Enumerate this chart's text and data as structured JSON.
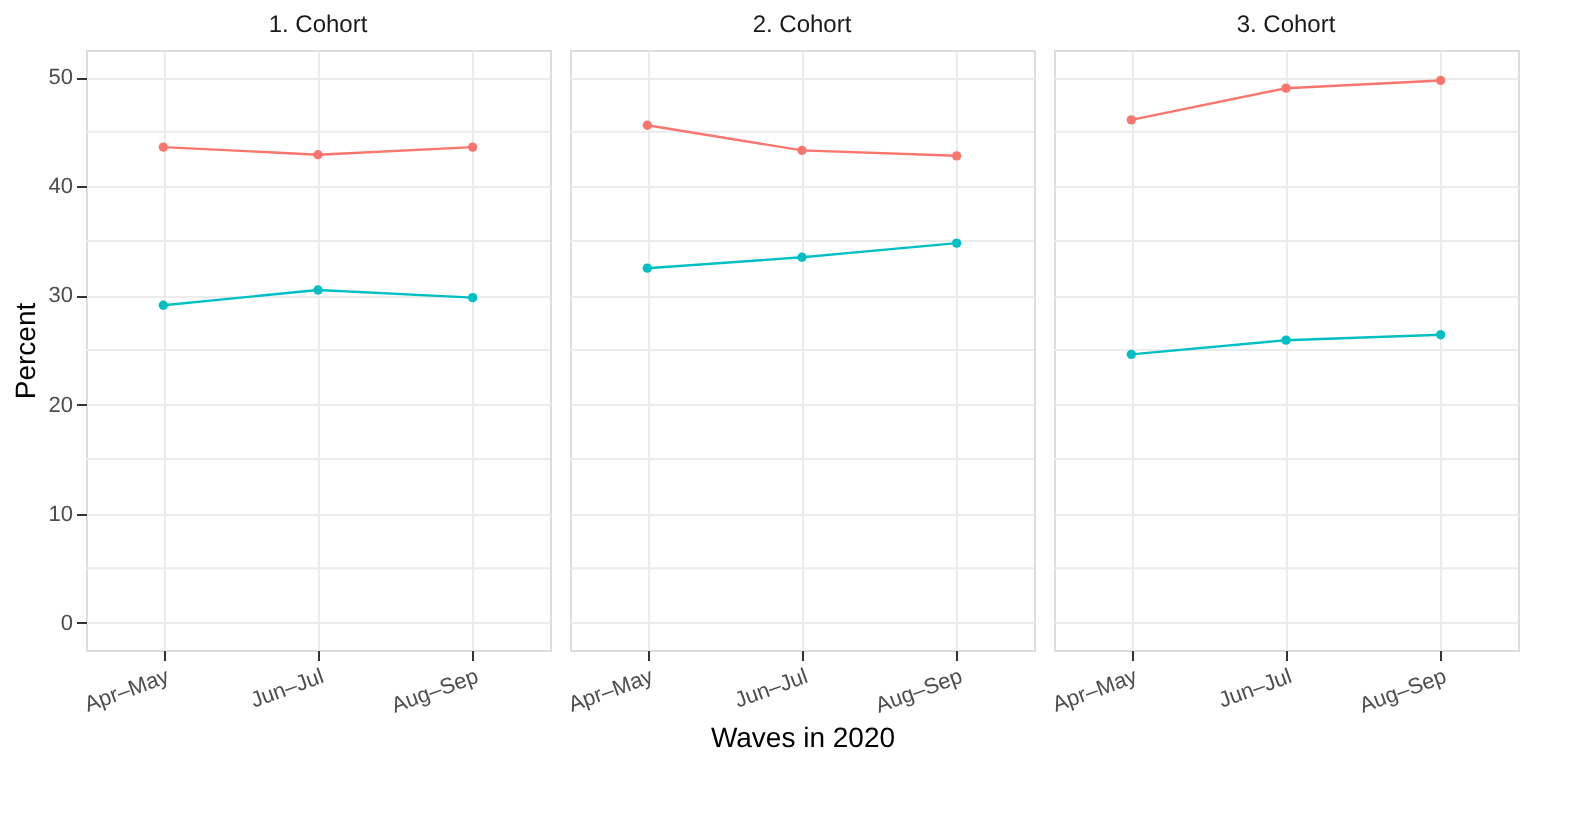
{
  "chart_data": [
    {
      "type": "line",
      "title": "1. Cohort",
      "ylabel": "Percent",
      "categories": [
        "Apr–May",
        "Jun–Jul",
        "Aug–Sep"
      ],
      "ylim": [
        -2.5,
        52.5
      ],
      "yticks": [
        0,
        {
          "value": 5,
          "label": null
        },
        10,
        {
          "value": 15,
          "label": null
        },
        20,
        {
          "value": 25,
          "label": null
        },
        30,
        {
          "value": 35,
          "label": null
        },
        40,
        {
          "value": 45,
          "label": null
        },
        50
      ],
      "grid": true,
      "marker": "circle",
      "legend": false,
      "series": [
        {
          "color": "#f8766d",
          "values": [
            43.6,
            42.9,
            43.6
          ]
        },
        {
          "color": "#00bfc4",
          "values": [
            29.1,
            30.5,
            29.8
          ]
        }
      ]
    },
    {
      "type": "line",
      "title": "2. Cohort",
      "xlabel": "Waves in 2020",
      "categories": [
        "Apr–May",
        "Jun–Jul",
        "Aug–Sep"
      ],
      "ylim": [
        -2.5,
        52.5
      ],
      "yticks": [
        0,
        {
          "value": 5,
          "label": null
        },
        10,
        {
          "value": 15,
          "label": null
        },
        20,
        {
          "value": 25,
          "label": null
        },
        30,
        {
          "value": 35,
          "label": null
        },
        40,
        {
          "value": 45,
          "label": null
        },
        50
      ],
      "grid": true,
      "marker": "circle",
      "legend": false,
      "tick_labels": "x",
      "series": [
        {
          "color": "#f8766d",
          "values": [
            45.6,
            43.3,
            42.8
          ]
        },
        {
          "color": "#00bfc4",
          "values": [
            32.5,
            33.5,
            34.8
          ]
        }
      ]
    },
    {
      "type": "line",
      "title": "3. Cohort",
      "categories": [
        "Apr–May",
        "Jun–Jul",
        "Aug–Sep"
      ],
      "ylim": [
        -2.5,
        52.5
      ],
      "yticks": [
        0,
        {
          "value": 5,
          "label": null
        },
        10,
        {
          "value": 15,
          "label": null
        },
        20,
        {
          "value": 25,
          "label": null
        },
        30,
        {
          "value": 35,
          "label": null
        },
        40,
        {
          "value": 45,
          "label": null
        },
        50
      ],
      "grid": true,
      "marker": "circle",
      "legend": false,
      "tick_labels": "x",
      "series": [
        {
          "color": "#f8766d",
          "values": [
            46.1,
            49.0,
            49.7
          ]
        },
        {
          "color": "#00bfc4",
          "values": [
            24.6,
            25.9,
            26.4
          ]
        }
      ]
    }
  ]
}
